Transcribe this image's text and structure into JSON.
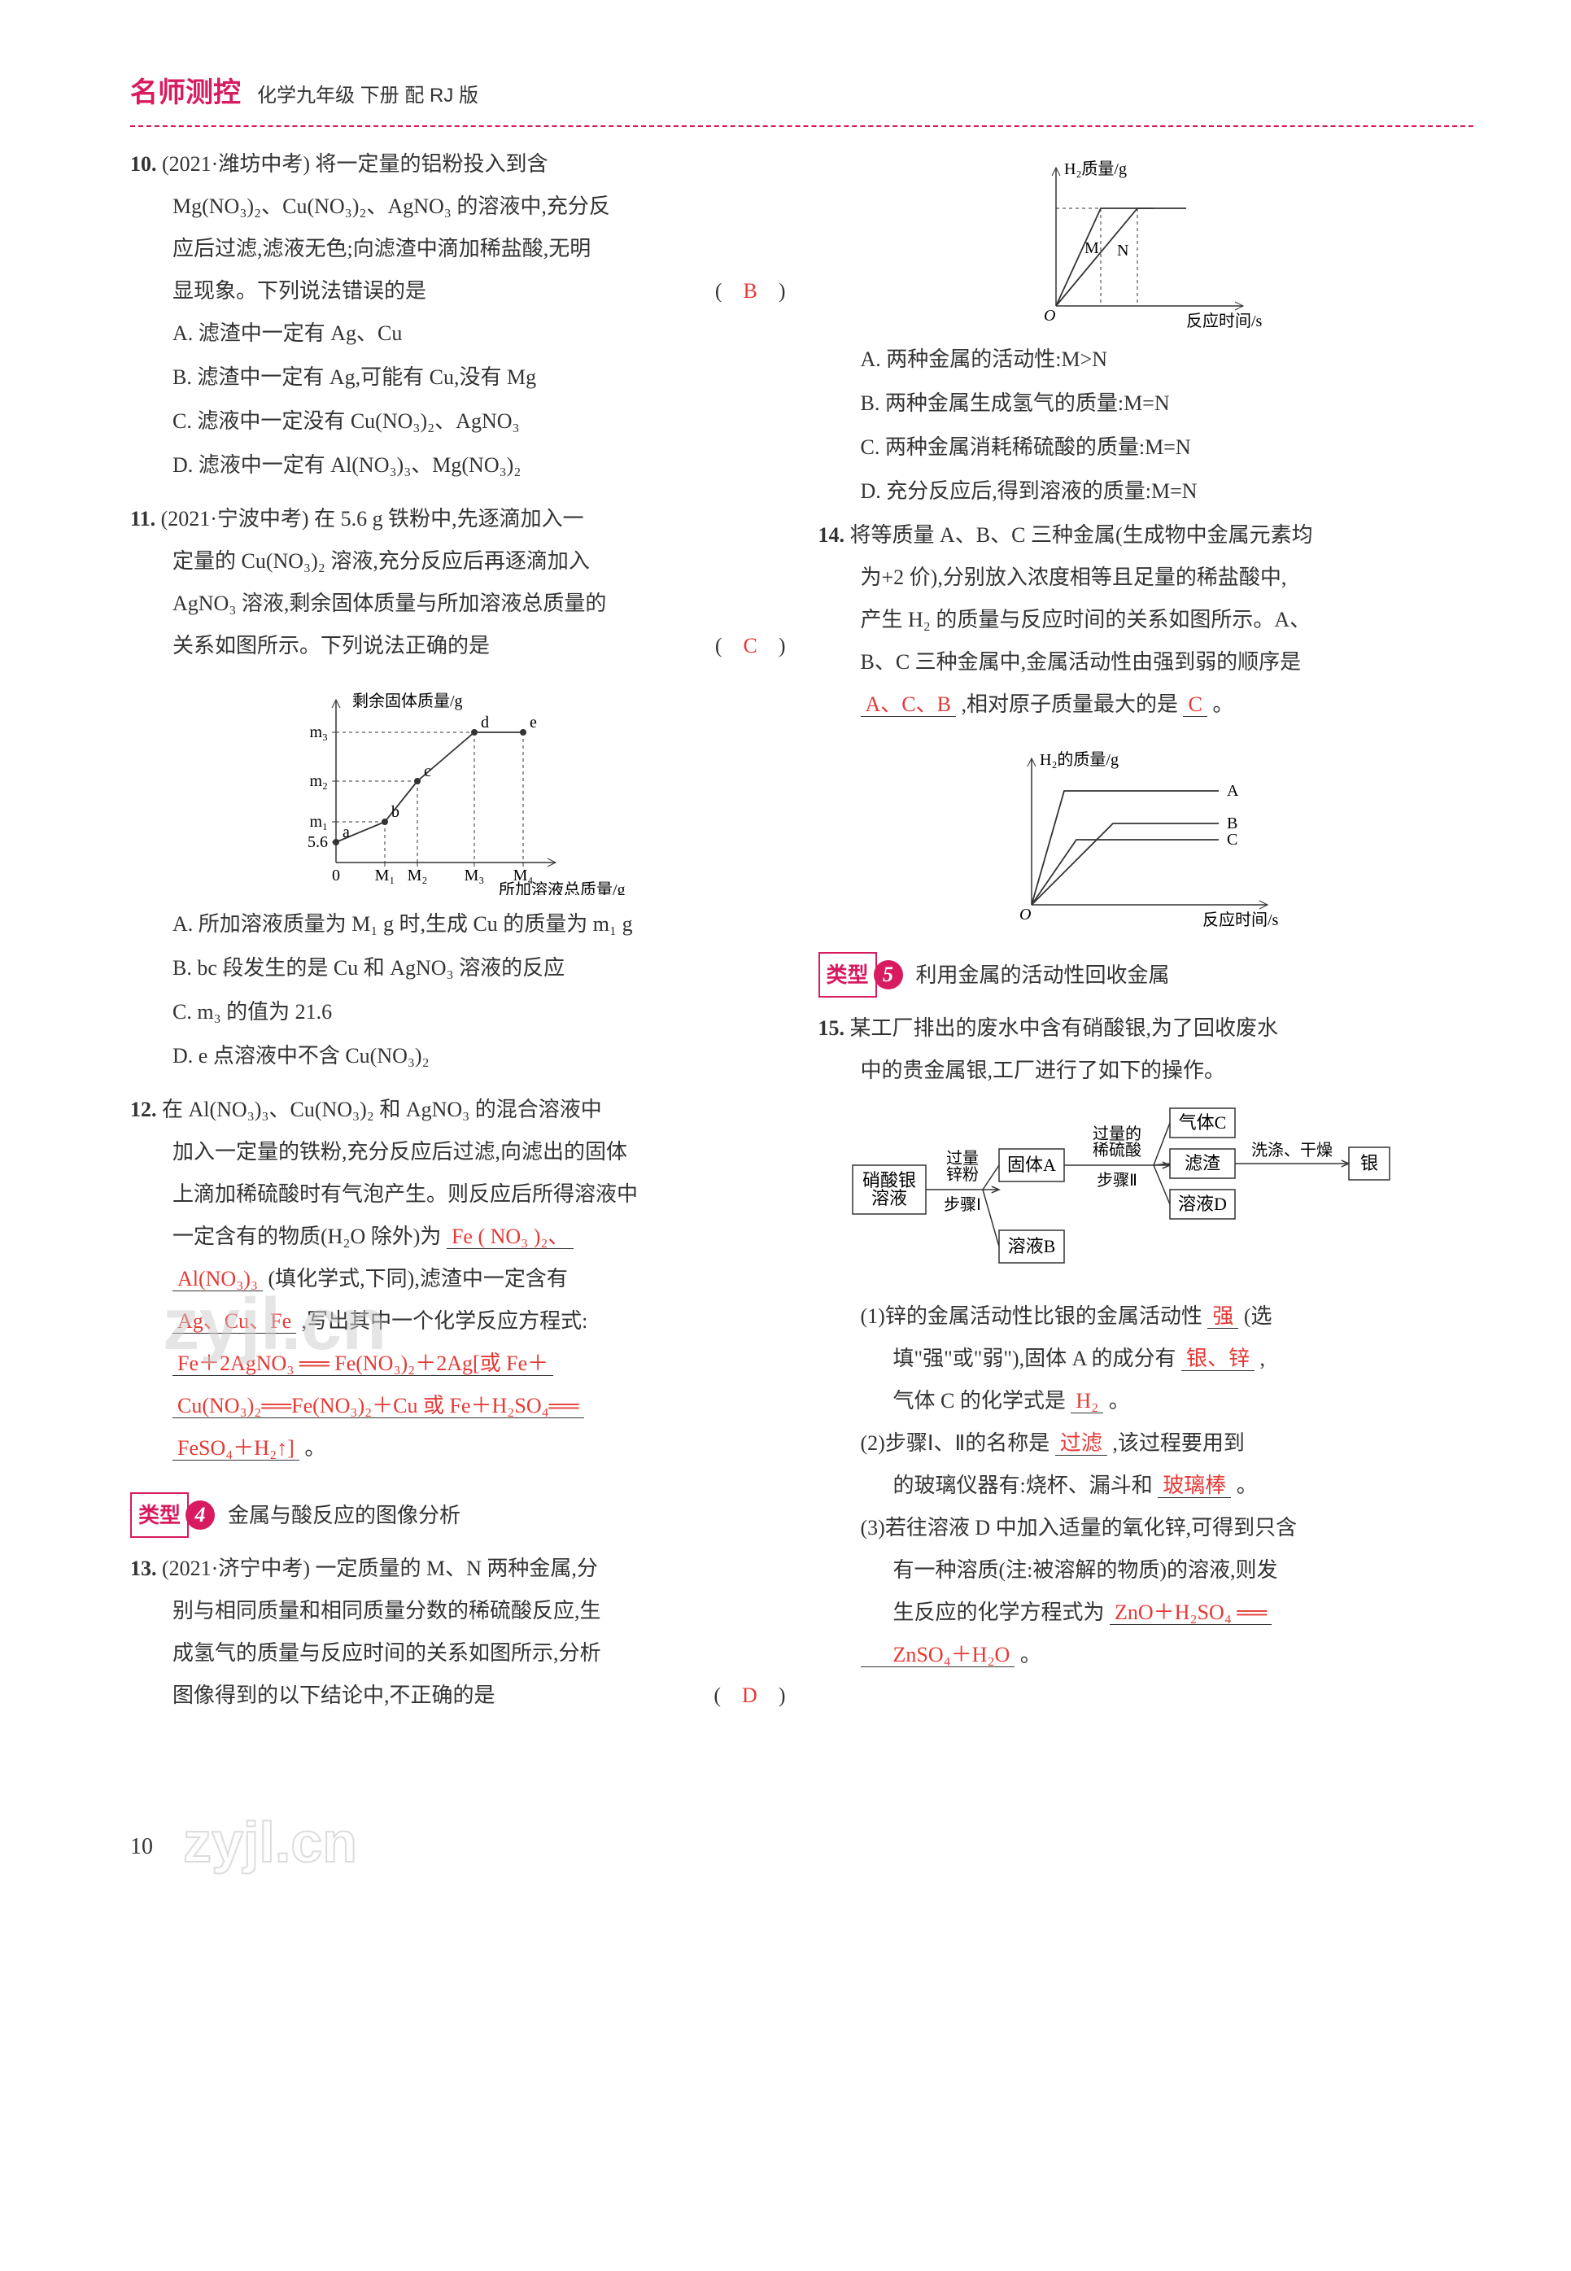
{
  "header": {
    "brand": "名师测控",
    "sub": "化学九年级 下册 配 RJ 版"
  },
  "q10": {
    "num": "10.",
    "src": "(2021·潍坊中考)",
    "stem1": "将一定量的铝粉投入到含",
    "stem2": "Mg(NO₃)₂、Cu(NO₃)₂、AgNO₃ 的溶液中,充分反",
    "stem3": "应后过滤,滤液无色;向滤渣中滴加稀盐酸,无明",
    "stem4": "显现象。下列说法错误的是",
    "answer": "B",
    "optA": "A. 滤渣中一定有 Ag、Cu",
    "optB": "B. 滤渣中一定有 Ag,可能有 Cu,没有 Mg",
    "optC": "C. 滤液中一定没有 Cu(NO₃)₂、AgNO₃",
    "optD": "D. 滤液中一定有 Al(NO₃)₃、Mg(NO₃)₂"
  },
  "q11": {
    "num": "11.",
    "src": "(2021·宁波中考)",
    "stem1": "在 5.6 g 铁粉中,先逐滴加入一",
    "stem2": "定量的 Cu(NO₃)₂ 溶液,充分反应后再逐滴加入",
    "stem3": "AgNO₃ 溶液,剩余固体质量与所加溶液总质量的",
    "stem4": "关系如图所示。下列说法正确的是",
    "answer": "C",
    "optA": "A. 所加溶液质量为 M₁ g 时,生成 Cu 的质量为 m₁ g",
    "optB": "B. bc 段发生的是 Cu 和 AgNO₃ 溶液的反应",
    "optC": "C. m₃ 的值为 21.6",
    "optD": "D. e 点溶液中不含 Cu(NO₃)₂"
  },
  "chart11": {
    "type": "line",
    "ylabel": "剩余固体质量/g",
    "xlabel": "所加溶液总质量/g",
    "ytick_labels": [
      "5.6",
      "m₁",
      "m₂",
      "m₃"
    ],
    "xtick_labels": [
      "0",
      "M₁",
      "M₂",
      "M₃",
      "M₄"
    ],
    "point_labels": [
      "a",
      "b",
      "c",
      "d",
      "e"
    ],
    "points_x": [
      0,
      60,
      100,
      170,
      230
    ],
    "points_y": [
      25,
      50,
      100,
      160,
      160
    ],
    "line_color": "#333333",
    "axis_color": "#333333",
    "font_size": 20
  },
  "q12": {
    "num": "12.",
    "stem1": "在 Al(NO₃)₃、Cu(NO₃)₂ 和 AgNO₃ 的混合溶液中",
    "stem2": "加入一定量的铁粉,充分反应后过滤,向滤出的固体",
    "stem3": "上滴加稀硫酸时有气泡产生。则反应后所得溶液中",
    "stem4_pre": "一定含有的物质(H₂O 除外)为",
    "blank1": "Fe ( NO₃ )₂、",
    "blank1b": "Al(NO₃)₃",
    "stem5_pre": "(填化学式,下同),滤渣中一定含有",
    "blank2": "Ag、Cu、Fe",
    "stem6_pre": ",写出其中一个化学反应方程式:",
    "blank3a": "Fe＋2AgNO₃ ══ Fe(NO₃)₂＋2Ag[或 Fe＋",
    "blank3b": "Cu(NO₃)₂══Fe(NO₃)₂＋Cu 或 Fe＋H₂SO₄══",
    "blank3c": "FeSO₄＋H₂↑]",
    "tail": "。"
  },
  "section4": {
    "label": "类型",
    "num": "4",
    "title": "金属与酸反应的图像分析"
  },
  "q13": {
    "num": "13.",
    "src": "(2021·济宁中考)",
    "stem1": "一定质量的 M、N 两种金属,分",
    "stem2": "别与相同质量和相同质量分数的稀硫酸反应,生",
    "stem3": "成氢气的质量与反应时间的关系如图所示,分析",
    "stem4": "图像得到的以下结论中,不正确的是",
    "answer": "D",
    "optA": "A. 两种金属的活动性:M>N",
    "optB": "B. 两种金属生成氢气的质量:M=N",
    "optC": "C. 两种金属消耗稀硫酸的质量:M=N",
    "optD": "D. 充分反应后,得到溶液的质量:M=N"
  },
  "chart13": {
    "type": "line",
    "ylabel": "H₂质量/g",
    "xlabel": "反应时间/s",
    "line_labels": [
      "M",
      "N"
    ],
    "M_x": [
      0,
      55,
      120
    ],
    "M_y": [
      0,
      120,
      120
    ],
    "N_x": [
      0,
      100,
      160
    ],
    "N_y": [
      0,
      120,
      120
    ],
    "axis_color": "#333333",
    "line_color": "#333333",
    "font_size": 20
  },
  "q14": {
    "num": "14.",
    "stem1": "将等质量 A、B、C 三种金属(生成物中金属元素均",
    "stem2": "为+2 价),分别放入浓度相等且足量的稀盐酸中,",
    "stem3": "产生 H₂ 的质量与反应时间的关系如图所示。A、",
    "stem4": "B、C 三种金属中,金属活动性由强到弱的顺序是",
    "blank1": "A、C、B",
    "stem5_pre": ",相对原子质量最大的是",
    "blank2": "C",
    "tail": "。"
  },
  "chart14": {
    "type": "line",
    "ylabel": "H₂的质量/g",
    "xlabel": "反应时间/s",
    "lines": [
      "A",
      "B",
      "C"
    ],
    "A_x": [
      0,
      40,
      230
    ],
    "A_y": [
      0,
      140,
      140
    ],
    "B_x": [
      0,
      100,
      230
    ],
    "B_y": [
      0,
      100,
      100
    ],
    "C_x": [
      0,
      55,
      230
    ],
    "C_y": [
      0,
      80,
      80
    ],
    "axis_color": "#333333",
    "line_color": "#333333",
    "font_size": 20
  },
  "section5": {
    "label": "类型",
    "num": "5",
    "title": "利用金属的活动性回收金属"
  },
  "q15": {
    "num": "15.",
    "stem1": "某工厂排出的废水中含有硝酸银,为了回收废水",
    "stem2": "中的贵金属银,工厂进行了如下的操作。",
    "sub1_pre": "(1)锌的金属活动性比银的金属活动性",
    "blank1": "强",
    "sub1_mid": "(选",
    "sub1_line2_pre": "填\"强\"或\"弱\"),固体 A 的成分有",
    "blank2": "银、锌",
    "sub1_tail": ",",
    "sub1_line3_pre": "气体 C 的化学式是",
    "blank3": "H₂",
    "sub1_line3_tail": "。",
    "sub2_pre": "(2)步骤Ⅰ、Ⅱ的名称是",
    "blank4": "过滤",
    "sub2_mid": ",该过程要用到",
    "sub2_line2_pre": "的玻璃仪器有:烧杯、漏斗和",
    "blank5": "玻璃棒",
    "sub2_tail": "。",
    "sub3_pre": "(3)若往溶液 D 中加入适量的氧化锌,可得到只含",
    "sub3_line2": "有一种溶质(注:被溶解的物质)的溶液,则发",
    "sub3_line3_pre": "生反应的化学方程式为",
    "blank6": "ZnO＋H₂SO₄ ══",
    "blank6b": "ZnSO₄＋H₂O",
    "sub3_tail": "。"
  },
  "flow15": {
    "n1": "硝酸银\n溶液",
    "e1_top": "过量\n锌粉",
    "e1_bot": "步骤Ⅰ",
    "n2": "固体A",
    "e2_top": "过量的\n稀硫酸",
    "e2_bot": "步骤Ⅱ",
    "n3": "气体C",
    "n4": "滤渣",
    "e4": "洗涤、干燥",
    "n5": "银",
    "n6": "溶液D",
    "n7": "溶液B",
    "box_border": "#333333",
    "font_size": 22
  },
  "watermarks": {
    "w1": "zyjl.cn",
    "w2": "zyjl.cn"
  },
  "pagenum": "10"
}
